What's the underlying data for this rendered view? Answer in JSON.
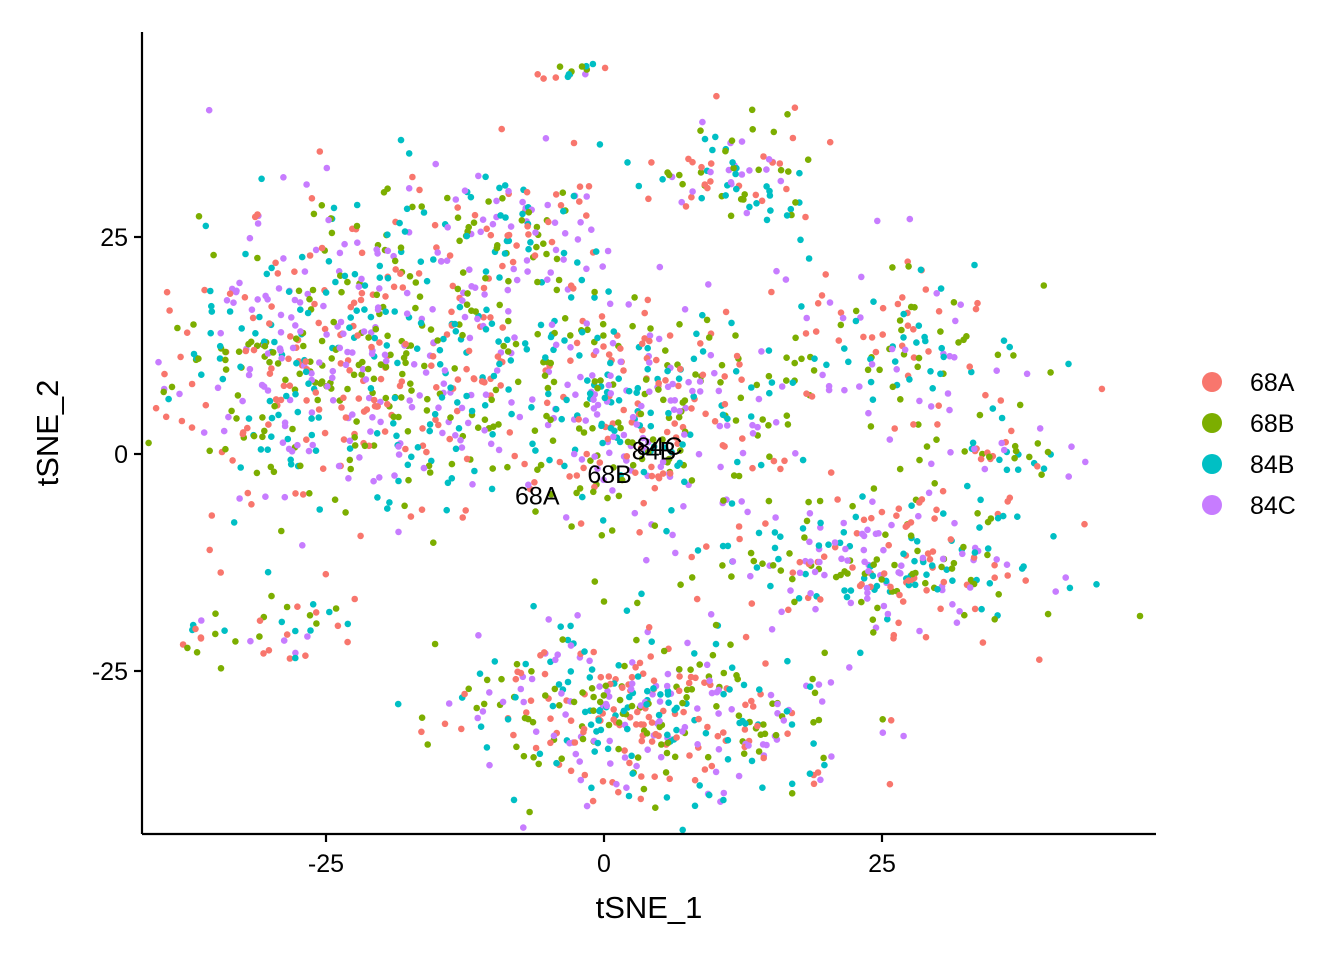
{
  "chart_data": {
    "type": "scatter",
    "xlabel": "tSNE_1",
    "ylabel": "tSNE_2",
    "xlim": [
      -42,
      50
    ],
    "ylim": [
      -44,
      48
    ],
    "x_ticks": [
      -25,
      0,
      25
    ],
    "y_ticks": [
      25,
      0,
      -25
    ],
    "x_tick_labels": [
      "-25",
      "0",
      "25"
    ],
    "y_tick_labels": [
      "25",
      "0",
      "-25"
    ],
    "grid": false,
    "legend_position": "right",
    "series": [
      {
        "name": "68A",
        "color": "#F8766D",
        "seed": 11
      },
      {
        "name": "68B",
        "color": "#7CAE00",
        "seed": 23
      },
      {
        "name": "84B",
        "color": "#00BFC4",
        "seed": 37
      },
      {
        "name": "84C",
        "color": "#C77CFF",
        "seed": 53
      }
    ],
    "cluster_regions": [
      {
        "cx": -22,
        "cy": 10,
        "rx": 16,
        "ry": 16,
        "n": 700
      },
      {
        "cx": -8,
        "cy": 25,
        "rx": 9,
        "ry": 8,
        "n": 140
      },
      {
        "cx": 3,
        "cy": 5,
        "rx": 12,
        "ry": 12,
        "n": 380
      },
      {
        "cx": 4,
        "cy": -30,
        "rx": 15,
        "ry": 9,
        "n": 430
      },
      {
        "cx": 25,
        "cy": -12,
        "rx": 14,
        "ry": 8,
        "n": 280
      },
      {
        "cx": 26,
        "cy": 12,
        "rx": 11,
        "ry": 10,
        "n": 150
      },
      {
        "cx": 37,
        "cy": 0,
        "rx": 6,
        "ry": 2,
        "n": 40
      },
      {
        "cx": 13,
        "cy": 32,
        "rx": 7,
        "ry": 6,
        "n": 90
      },
      {
        "cx": -3,
        "cy": 44,
        "rx": 3,
        "ry": 1,
        "n": 15
      },
      {
        "cx": -27,
        "cy": -20,
        "rx": 5,
        "ry": 4,
        "n": 30
      },
      {
        "cx": -36,
        "cy": -21,
        "rx": 2,
        "ry": 3,
        "n": 12
      },
      {
        "cx": 19,
        "cy": -36,
        "rx": 1,
        "ry": 1,
        "n": 3
      }
    ],
    "cluster_labels": [
      {
        "text": "68A",
        "x": -6,
        "y": -4.8
      },
      {
        "text": "68B",
        "x": 0.5,
        "y": -2.3
      },
      {
        "text": "84B",
        "x": 4.5,
        "y": 0.4
      },
      {
        "text": "84C",
        "x": 5.0,
        "y": 0.9
      }
    ]
  }
}
